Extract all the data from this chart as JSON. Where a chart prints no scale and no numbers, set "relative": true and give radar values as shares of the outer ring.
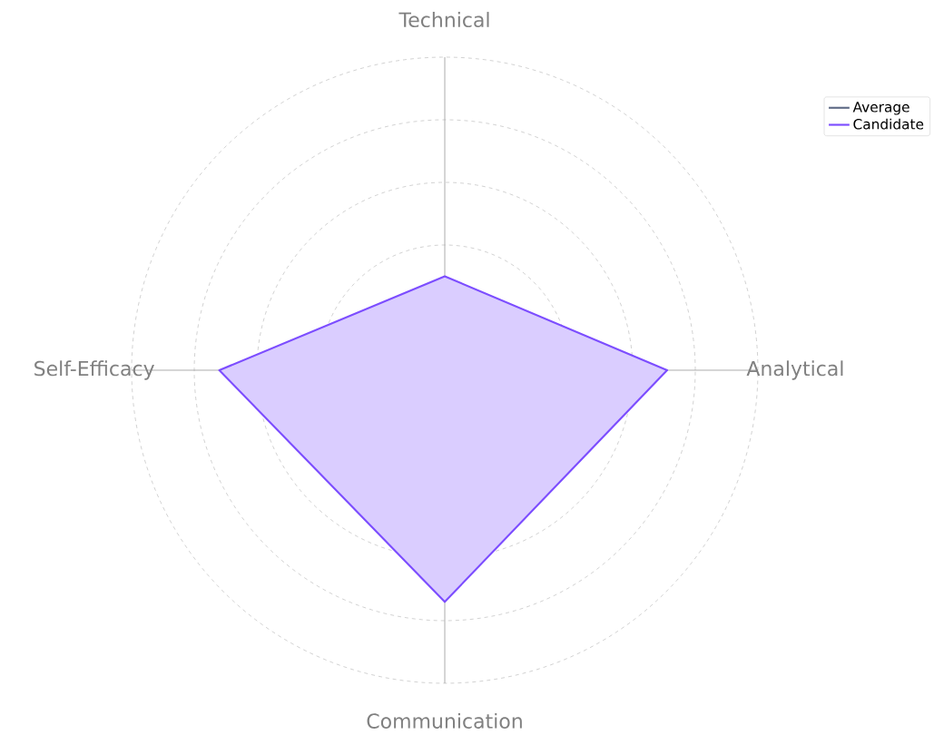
{
  "chart_data": {
    "type": "radar",
    "relative": true,
    "grid": true,
    "legend": "top right",
    "categories": [
      "Technical",
      "Analytical",
      "Communication",
      "Self-Efficacy"
    ],
    "series": [
      {
        "name": "Candidate",
        "color": "#7c4dff",
        "values": [
          0.3,
          0.71,
          0.74,
          0.72
        ]
      },
      {
        "name": "Average",
        "color": "#5f6b86",
        "values": [
          null,
          null,
          null,
          null
        ]
      }
    ]
  }
}
